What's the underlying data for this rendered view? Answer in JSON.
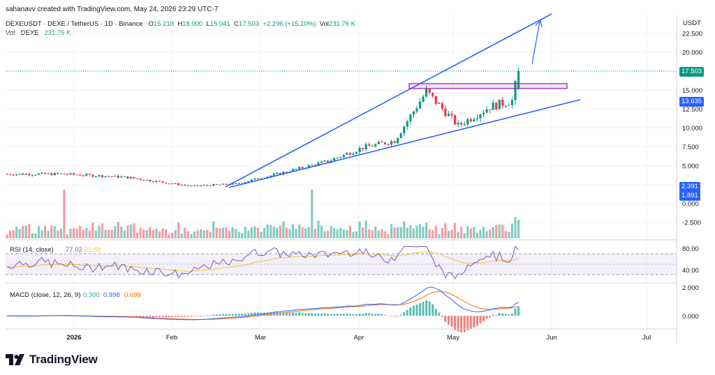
{
  "header": {
    "credit": "sahanavv created with TradingView.com, May 24, 2026 23:29 UTC-7",
    "symbol": "DEXEUSDT · DEXE / TetherUS · 1D · Binance",
    "o_label": "O",
    "o_value": "15.218",
    "h_label": "H",
    "h_value": "18.000",
    "l_label": "L",
    "l_value": "15.041",
    "c_label": "C",
    "c_value": "17.503",
    "change": "+2.296 (+15.10%)",
    "vol_label": "Vol",
    "vol_value": "231.76 K",
    "vol_row_label": "Vol · DEXE",
    "vol_row_value": "231.76 K"
  },
  "price_axis": {
    "currency": "USDT",
    "ticks": [
      "22.500",
      "20.000",
      "17.500",
      "15.000",
      "12.500",
      "10.000",
      "7.500",
      "5.000",
      "2.500",
      "0.000",
      "-2.500"
    ],
    "tick_values": [
      22.5,
      20,
      17.5,
      15,
      12.5,
      10,
      7.5,
      5,
      2.5,
      0,
      -2.5
    ],
    "last_price_tag": "17.503",
    "level_tag": "13.635",
    "tag_a": "2.391",
    "tag_b": "1.891"
  },
  "rsi": {
    "label": "RSI (14, close)",
    "value": "77.02",
    "ma_value": "61.68",
    "ticks": [
      "80.00",
      "40.00"
    ]
  },
  "macd": {
    "label": "MACD (close, 12, 26, 9)",
    "hist": "0.300",
    "macd": "0.998",
    "signal": "0.699",
    "ticks": [
      "2.000",
      "0.000"
    ]
  },
  "time_axis": {
    "labels": [
      "2026",
      "Feb",
      "Mar",
      "Apr",
      "May",
      "Jun",
      "Jul"
    ]
  },
  "brand": {
    "name": "TradingView"
  },
  "colors": {
    "up": "#089981",
    "down": "#f23645",
    "trend": "#2962ff",
    "box": "#9c27b0",
    "rsi": "#7e57c2",
    "rsi_ma": "#fbc02d",
    "macd": "#2962ff",
    "signal": "#ff6d00",
    "last_price": "#089981"
  },
  "chart_data": {
    "type": "candlestick",
    "title": "DEXEUSDT · DEXE / TetherUS · 1D · Binance",
    "ylim": [
      -2.5,
      24
    ],
    "key_points": [
      {
        "date": "2026-01-01",
        "close": 3.9
      },
      {
        "date": "2026-01-20",
        "close": 3.5
      },
      {
        "date": "2026-02-10",
        "close": 2.3
      },
      {
        "date": "2026-02-24",
        "close": 2.6
      },
      {
        "date": "2026-03-10",
        "close": 4.0
      },
      {
        "date": "2026-03-25",
        "close": 5.6
      },
      {
        "date": "2026-04-05",
        "close": 7.4
      },
      {
        "date": "2026-04-15",
        "close": 8.3
      },
      {
        "date": "2026-04-25",
        "close": 14.8
      },
      {
        "date": "2026-05-05",
        "close": 10.3
      },
      {
        "date": "2026-05-15",
        "close": 12.8
      },
      {
        "date": "2026-05-22",
        "close": 13.6
      },
      {
        "date": "2026-05-24",
        "close": 17.503
      }
    ],
    "last_candle": {
      "open": 15.218,
      "high": 18.0,
      "low": 15.041,
      "close": 17.503
    },
    "levels": {
      "last_price": 17.503,
      "resistance_box": [
        15.0,
        16.0
      ],
      "marked_level": 13.635
    },
    "rsi_bands": [
      70,
      30
    ],
    "rsi_last": 77.02,
    "macd_last": {
      "hist": 0.3,
      "macd": 0.998,
      "signal": 0.699
    }
  }
}
